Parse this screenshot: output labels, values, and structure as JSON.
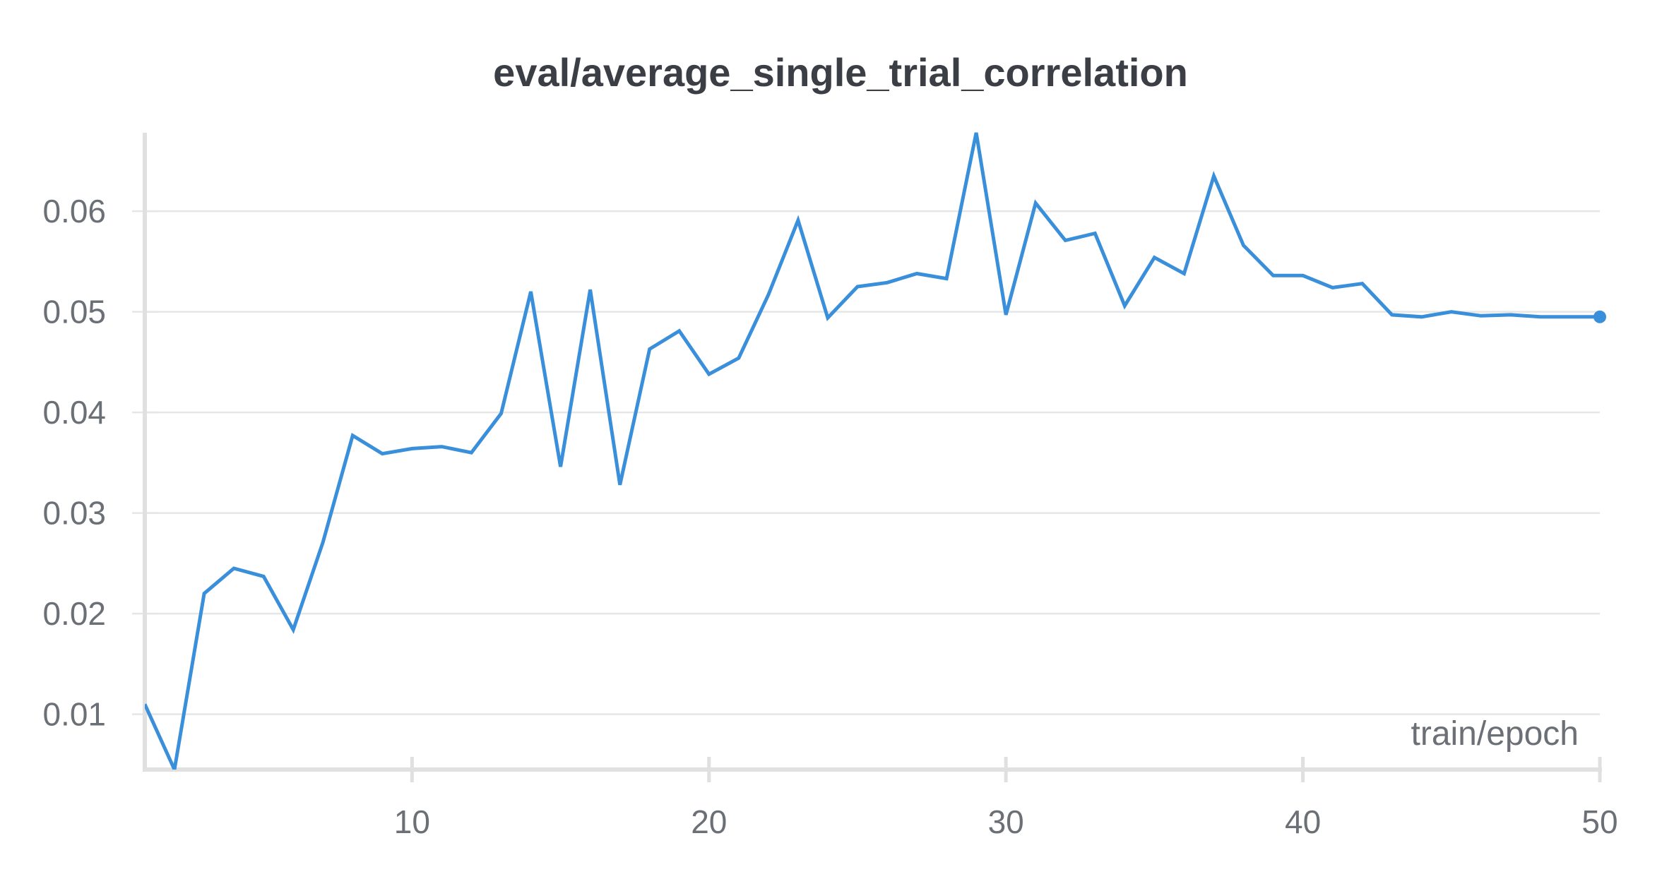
{
  "chart_data": {
    "type": "line",
    "title": "eval/average_single_trial_correlation",
    "xlabel": "train/epoch",
    "ylabel": "",
    "xlim": [
      1,
      50
    ],
    "ylim": [
      0.0045,
      0.0678
    ],
    "x_ticks": [
      10,
      20,
      30,
      40,
      50
    ],
    "y_ticks": [
      0.01,
      0.02,
      0.03,
      0.04,
      0.05,
      0.06
    ],
    "x_tick_labels": [
      "10",
      "20",
      "30",
      "40",
      "50"
    ],
    "y_tick_labels": [
      "0.01",
      "0.02",
      "0.03",
      "0.04",
      "0.05",
      "0.06"
    ],
    "grid": true,
    "color": "#3a8fdb",
    "series": [
      {
        "x": [
          1,
          2,
          3,
          4,
          5,
          6,
          7,
          8,
          9,
          10,
          11,
          12,
          13,
          14,
          15,
          16,
          17,
          18,
          19,
          20,
          21,
          22,
          23,
          24,
          25,
          26,
          27,
          28,
          29,
          30,
          31,
          32,
          33,
          34,
          35,
          36,
          37,
          38,
          39,
          40,
          41,
          42,
          43,
          44,
          45,
          46,
          47,
          48,
          49,
          50
        ],
        "values": [
          0.011,
          0.0045,
          0.022,
          0.0245,
          0.0237,
          0.0184,
          0.0271,
          0.0377,
          0.0359,
          0.0364,
          0.0366,
          0.036,
          0.0399,
          0.052,
          0.0346,
          0.0522,
          0.0328,
          0.0463,
          0.0481,
          0.0438,
          0.0454,
          0.0517,
          0.0591,
          0.0494,
          0.0525,
          0.0529,
          0.0538,
          0.0533,
          0.0678,
          0.0497,
          0.0608,
          0.0571,
          0.0578,
          0.0506,
          0.0554,
          0.0538,
          0.0635,
          0.0566,
          0.0536,
          0.0536,
          0.0524,
          0.0528,
          0.0497,
          0.0495,
          0.05,
          0.0496,
          0.0497,
          0.0495,
          0.0495,
          0.0495
        ]
      }
    ]
  }
}
